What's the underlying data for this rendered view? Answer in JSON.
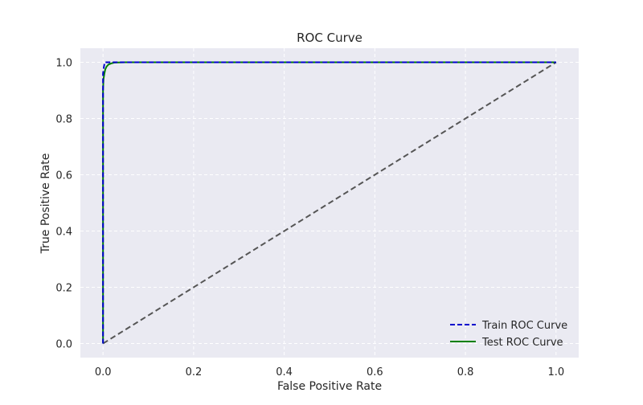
{
  "chart_data": {
    "type": "line",
    "title": "ROC Curve",
    "xlabel": "False Positive Rate",
    "ylabel": "True Positive Rate",
    "xlim": [
      -0.05,
      1.05
    ],
    "ylim": [
      -0.05,
      1.05
    ],
    "x_ticks": [
      0.0,
      0.2,
      0.4,
      0.6,
      0.8,
      1.0
    ],
    "y_ticks": [
      0.0,
      0.2,
      0.4,
      0.6,
      0.8,
      1.0
    ],
    "x_tick_labels": [
      "0.0",
      "0.2",
      "0.4",
      "0.6",
      "0.8",
      "1.0"
    ],
    "y_tick_labels": [
      "0.0",
      "0.2",
      "0.4",
      "0.6",
      "0.8",
      "1.0"
    ],
    "grid": true,
    "grid_style": "dashed",
    "legend_position": "lower-right",
    "background_color": "#eaeaf2",
    "series": [
      {
        "name": "Train ROC Curve",
        "color": "#0000cc",
        "line_style": "dashed",
        "x": [
          0.0,
          0.0,
          0.002,
          0.004,
          1.0
        ],
        "y": [
          0.0,
          0.96,
          0.985,
          1.0,
          1.0
        ]
      },
      {
        "name": "Test ROC Curve",
        "color": "#008000",
        "line_style": "solid",
        "x": [
          0.0,
          0.0,
          0.001,
          0.003,
          0.005,
          0.008,
          0.012,
          0.018,
          0.025,
          0.05,
          1.0
        ],
        "y": [
          0.0,
          0.9,
          0.94,
          0.96,
          0.975,
          0.985,
          0.992,
          0.996,
          0.999,
          1.0,
          1.0
        ]
      }
    ],
    "reference_line": {
      "color": "#555555",
      "line_style": "dashed",
      "x": [
        0.0,
        1.0
      ],
      "y": [
        0.0,
        1.0
      ]
    }
  }
}
